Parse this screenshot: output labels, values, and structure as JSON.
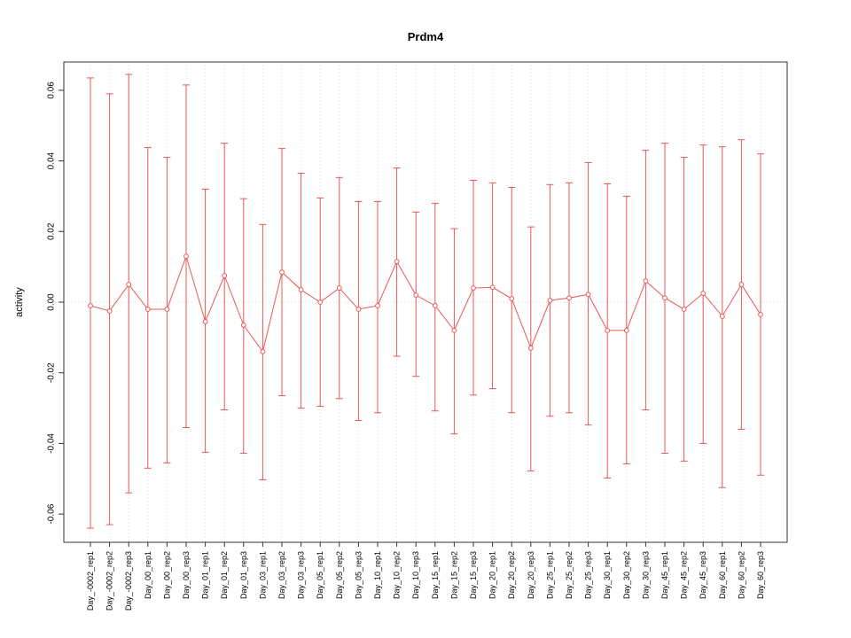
{
  "chart_data": {
    "type": "line",
    "title": "Prdm4",
    "xlabel": "",
    "ylabel": "activity",
    "ylim": [
      -0.068,
      0.068
    ],
    "yticks": [
      -0.06,
      -0.04,
      -0.02,
      0.0,
      0.02,
      0.04,
      0.06
    ],
    "grid": true,
    "legend": "none",
    "point_style": "open-circle",
    "error_bars": true,
    "color": "#e95757",
    "grid_color": "#d8d8d8",
    "axis_color": "#333333",
    "categories": [
      "Day_-0002_rep1",
      "Day_-0002_rep2",
      "Day_-0002_rep3",
      "Day_00_rep1",
      "Day_00_rep2",
      "Day_00_rep3",
      "Day_01_rep1",
      "Day_01_rep2",
      "Day_01_rep3",
      "Day_03_rep1",
      "Day_03_rep2",
      "Day_03_rep3",
      "Day_05_rep1",
      "Day_05_rep2",
      "Day_05_rep3",
      "Day_10_rep1",
      "Day_10_rep2",
      "Day_10_rep3",
      "Day_15_rep1",
      "Day_15_rep2",
      "Day_15_rep3",
      "Day_20_rep1",
      "Day_20_rep2",
      "Day_20_rep3",
      "Day_25_rep1",
      "Day_25_rep2",
      "Day_25_rep3",
      "Day_30_rep1",
      "Day_30_rep2",
      "Day_30_rep3",
      "Day_45_rep1",
      "Day_45_rep2",
      "Day_45_rep3",
      "Day_60_rep1",
      "Day_60_rep2",
      "Day_60_rep3"
    ],
    "series": [
      {
        "name": "activity",
        "values": [
          -0.001,
          -0.0025,
          0.005,
          -0.002,
          -0.002,
          0.013,
          -0.0055,
          0.0075,
          -0.0065,
          -0.014,
          0.0085,
          0.0035,
          0.0,
          0.004,
          -0.002,
          -0.001,
          0.0115,
          0.002,
          -0.001,
          -0.008,
          0.004,
          0.0042,
          0.001,
          -0.013,
          0.0005,
          0.0012,
          0.0022,
          -0.008,
          -0.008,
          0.006,
          0.0012,
          -0.002,
          0.0025,
          -0.004,
          0.005,
          -0.0035
        ],
        "error_high": [
          0.0635,
          0.059,
          0.0645,
          0.0438,
          0.041,
          0.0615,
          0.032,
          0.045,
          0.0293,
          0.022,
          0.0435,
          0.0365,
          0.0295,
          0.0353,
          0.0285,
          0.0285,
          0.038,
          0.0255,
          0.028,
          0.0208,
          0.0345,
          0.0338,
          0.0325,
          0.0213,
          0.0333,
          0.0338,
          0.0395,
          0.0335,
          0.03,
          0.043,
          0.045,
          0.041,
          0.0445,
          0.044,
          0.046,
          0.042
        ],
        "error_low": [
          -0.064,
          -0.063,
          -0.054,
          -0.047,
          -0.0455,
          -0.0355,
          -0.0425,
          -0.0305,
          -0.0428,
          -0.0503,
          -0.0265,
          -0.03,
          -0.0295,
          -0.0273,
          -0.0335,
          -0.0313,
          -0.0153,
          -0.021,
          -0.0308,
          -0.0373,
          -0.0263,
          -0.0245,
          -0.0313,
          -0.0478,
          -0.0323,
          -0.0313,
          -0.0348,
          -0.0498,
          -0.0458,
          -0.0305,
          -0.0428,
          -0.045,
          -0.04,
          -0.0525,
          -0.036,
          -0.049
        ]
      }
    ]
  }
}
